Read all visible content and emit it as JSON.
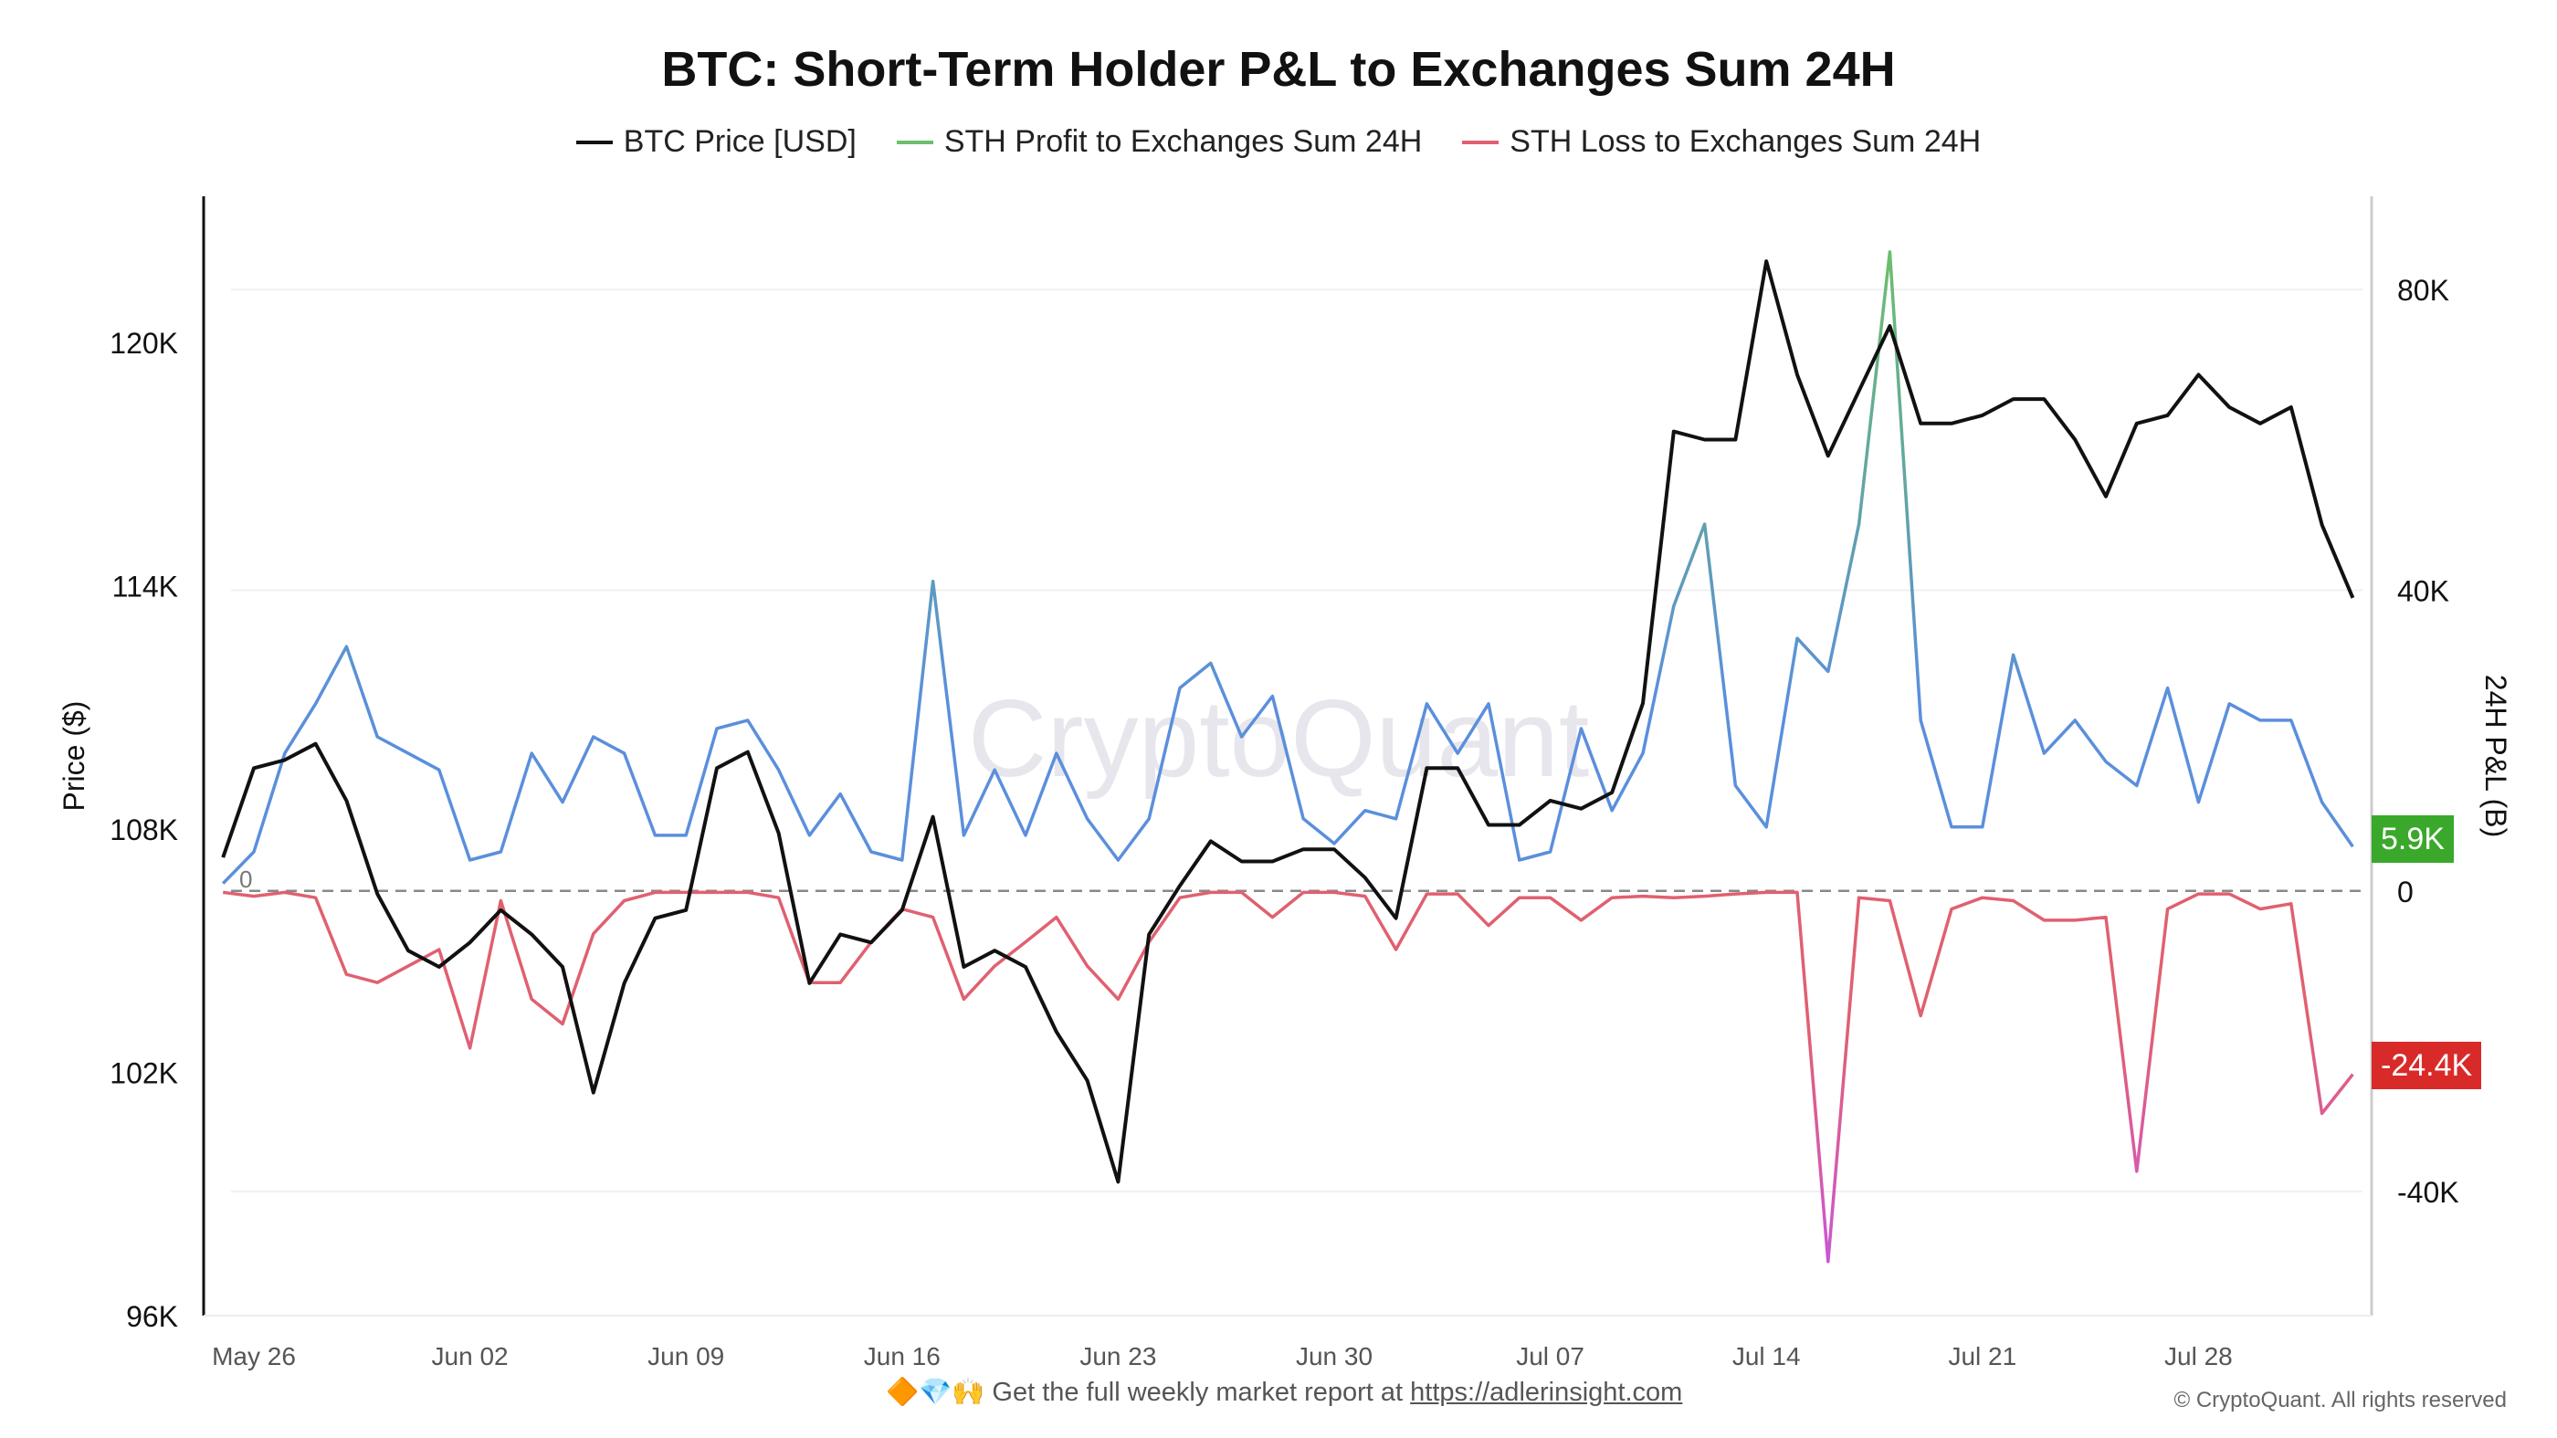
{
  "chart_data": {
    "type": "line",
    "title": "BTC: Short-Term Holder P&L to Exchanges Sum 24H",
    "legend_position": "top",
    "grid": true,
    "watermark": "CryptoQuant",
    "start_marker": "0",
    "x_ticks": [
      "May 26",
      "Jun 02",
      "Jun 09",
      "Jun 16",
      "Jun 23",
      "Jun 30",
      "Jul 07",
      "Jul 14",
      "Jul 21",
      "Jul 28"
    ],
    "y_left": {
      "label": "Price ($)",
      "ticks": [
        "96K",
        "102K",
        "108K",
        "114K",
        "120K"
      ],
      "tick_values": [
        96,
        102,
        108,
        114,
        120
      ],
      "range": [
        96,
        123.6
      ],
      "unit": "K USD"
    },
    "y_right": {
      "label": "24H P&L (B)",
      "ticks": [
        "-40K",
        "0",
        "40K",
        "80K"
      ],
      "tick_values": [
        -40,
        0,
        40,
        80
      ],
      "range": [
        -56.5,
        92.4
      ],
      "unit": "K"
    },
    "x": [
      "05-25",
      "05-26",
      "05-27",
      "05-28",
      "05-29",
      "05-30",
      "05-31",
      "06-01",
      "06-02",
      "06-03",
      "06-04",
      "06-05",
      "06-06",
      "06-07",
      "06-08",
      "06-09",
      "06-10",
      "06-11",
      "06-12",
      "06-13",
      "06-14",
      "06-15",
      "06-16",
      "06-17",
      "06-18",
      "06-19",
      "06-20",
      "06-21",
      "06-22",
      "06-23",
      "06-24",
      "06-25",
      "06-26",
      "06-27",
      "06-28",
      "06-29",
      "06-30",
      "07-01",
      "07-02",
      "07-03",
      "07-04",
      "07-05",
      "07-06",
      "07-07",
      "07-08",
      "07-09",
      "07-10",
      "07-11",
      "07-12",
      "07-13",
      "07-14",
      "07-15",
      "07-16",
      "07-17",
      "07-18",
      "07-19",
      "07-20",
      "07-21",
      "07-22",
      "07-23",
      "07-24",
      "07-25",
      "07-26",
      "07-27",
      "07-28",
      "07-29",
      "07-30",
      "07-31",
      "08-01",
      "08-02"
    ],
    "series": [
      {
        "name": "BTC Price [USD]",
        "axis": "left",
        "color": "#111111",
        "values": [
          107.3,
          109.5,
          109.7,
          110.1,
          108.7,
          106.4,
          105.0,
          104.6,
          105.2,
          106.0,
          105.4,
          104.6,
          101.5,
          104.2,
          105.8,
          106.0,
          109.5,
          109.9,
          107.9,
          104.2,
          105.4,
          105.2,
          106.0,
          108.3,
          104.6,
          105.0,
          104.6,
          103.0,
          101.8,
          99.3,
          105.4,
          106.6,
          107.7,
          107.2,
          107.2,
          107.5,
          107.5,
          106.8,
          105.8,
          109.5,
          109.5,
          108.1,
          108.1,
          108.7,
          108.5,
          108.9,
          111.1,
          117.8,
          117.6,
          117.6,
          122.0,
          119.2,
          117.2,
          118.8,
          120.4,
          118.0,
          118.0,
          118.2,
          118.6,
          118.6,
          117.6,
          116.2,
          118.0,
          118.2,
          119.2,
          118.4,
          118.0,
          118.4,
          115.5,
          113.7
        ]
      },
      {
        "name": "STH Profit to Exchanges Sum 24H",
        "axis": "right",
        "color": "#6cbf6c",
        "low_color": "#5b8fdc",
        "values": [
          1.0,
          5.2,
          18.3,
          24.9,
          32.5,
          20.5,
          18.3,
          16.1,
          4.1,
          5.2,
          18.3,
          11.8,
          20.5,
          18.3,
          7.4,
          7.4,
          21.6,
          22.7,
          16.1,
          7.4,
          12.9,
          5.2,
          4.1,
          41.2,
          7.4,
          16.1,
          7.4,
          18.3,
          9.6,
          4.1,
          9.6,
          27.0,
          30.3,
          20.5,
          25.9,
          9.6,
          6.3,
          10.7,
          9.6,
          24.9,
          18.3,
          24.9,
          4.1,
          5.2,
          21.6,
          10.7,
          18.3,
          37.9,
          48.8,
          14.0,
          8.5,
          33.6,
          29.2,
          48.8,
          85.0,
          22.7,
          8.5,
          8.5,
          31.4,
          18.3,
          22.7,
          17.2,
          14.0,
          27.0,
          11.8,
          24.9,
          22.7,
          22.7,
          11.8,
          5.9
        ]
      },
      {
        "name": "STH Loss to Exchanges Sum 24H",
        "axis": "right",
        "color": "#e06070",
        "low_color": "#c856d8",
        "values": [
          -0.2,
          -0.7,
          -0.2,
          -0.9,
          -11.1,
          -12.2,
          -10.0,
          -7.8,
          -20.9,
          -1.3,
          -14.4,
          -17.7,
          -5.7,
          -1.3,
          -0.2,
          -0.2,
          -0.2,
          -0.2,
          -0.9,
          -12.2,
          -12.2,
          -6.8,
          -2.4,
          -3.5,
          -14.4,
          -10.0,
          -6.8,
          -3.5,
          -10.0,
          -14.4,
          -6.8,
          -0.9,
          -0.2,
          -0.2,
          -3.5,
          -0.2,
          -0.2,
          -0.7,
          -7.8,
          -0.4,
          -0.4,
          -4.6,
          -0.9,
          -0.9,
          -3.9,
          -0.9,
          -0.7,
          -0.9,
          -0.7,
          -0.4,
          -0.2,
          -0.2,
          -49.3,
          -0.9,
          -1.3,
          -16.6,
          -2.4,
          -0.9,
          -1.3,
          -3.9,
          -3.9,
          -3.5,
          -37.3,
          -2.4,
          -0.4,
          -0.4,
          -2.4,
          -1.7,
          -29.6,
          -24.4
        ]
      }
    ],
    "last_value_labels": {
      "profit": "5.9K",
      "loss": "-24.4K",
      "profit_color": "#3aa82a",
      "loss_color": "#d92a2a"
    }
  },
  "footer": {
    "emojis": "🔶💎🙌",
    "text": "Get the full weekly market report at",
    "link": "https://adlerinsight.com",
    "copyright": "© CryptoQuant. All rights reserved"
  }
}
